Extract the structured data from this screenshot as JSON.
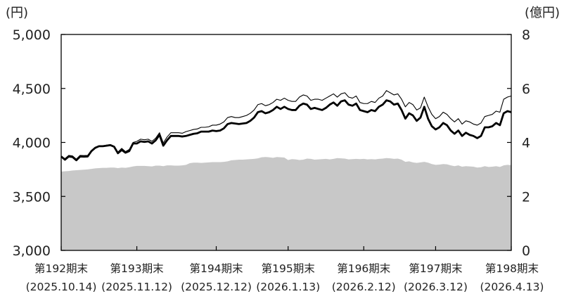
{
  "chart_data": {
    "type": "line",
    "left_axis": {
      "unit": "(円)",
      "ticks": [
        "5,000",
        "4,500",
        "4,000",
        "3,500",
        "3,000"
      ],
      "tick_values": [
        5000,
        4500,
        4000,
        3500,
        3000
      ],
      "ylim": [
        3000,
        5000
      ]
    },
    "right_axis": {
      "unit": "(億円)",
      "ticks": [
        "8",
        "6",
        "4",
        "2",
        "0"
      ],
      "tick_values": [
        8,
        6,
        4,
        2,
        0
      ],
      "ylim": [
        0,
        8
      ]
    },
    "x_labels": [
      {
        "term": "第192期末",
        "date": "(2025.10.14)",
        "index": 0
      },
      {
        "term": "第193期末",
        "date": "(2025.11.12)",
        "index": 20
      },
      {
        "term": "第194期末",
        "date": "(2025.12.12)",
        "index": 41
      },
      {
        "term": "第195期末",
        "date": "(2026.1.13)",
        "index": 60
      },
      {
        "term": "第196期末",
        "date": "(2026.2.12)",
        "index": 80
      },
      {
        "term": "第197期末",
        "date": "(2026.3.12)",
        "index": 99
      },
      {
        "term": "第198期末",
        "date": "(2026.4.13)",
        "index": 119
      }
    ],
    "n_points": 120,
    "series": [
      {
        "role": "thick-line",
        "axis": "left",
        "color": "#000000",
        "values": [
          3870,
          3840,
          3870,
          3865,
          3835,
          3870,
          3868,
          3870,
          3920,
          3950,
          3965,
          3965,
          3970,
          3975,
          3960,
          3900,
          3930,
          3905,
          3920,
          3990,
          3990,
          4010,
          4005,
          4010,
          3990,
          4020,
          4070,
          3970,
          4020,
          4060,
          4060,
          4060,
          4055,
          4060,
          4070,
          4080,
          4085,
          4100,
          4100,
          4100,
          4110,
          4105,
          4110,
          4130,
          4170,
          4180,
          4175,
          4170,
          4175,
          4180,
          4200,
          4230,
          4280,
          4290,
          4270,
          4280,
          4300,
          4330,
          4310,
          4330,
          4310,
          4300,
          4300,
          4340,
          4360,
          4350,
          4310,
          4320,
          4310,
          4300,
          4320,
          4350,
          4370,
          4340,
          4380,
          4390,
          4350,
          4340,
          4360,
          4300,
          4290,
          4280,
          4300,
          4290,
          4330,
          4350,
          4390,
          4380,
          4350,
          4360,
          4300,
          4220,
          4270,
          4250,
          4200,
          4230,
          4330,
          4220,
          4150,
          4120,
          4140,
          4180,
          4160,
          4110,
          4080,
          4110,
          4060,
          4090,
          4070,
          4060,
          4040,
          4060,
          4140,
          4140,
          4150,
          4180,
          4160,
          4270,
          4290,
          4280
        ]
      },
      {
        "role": "thin-line",
        "axis": "left",
        "color": "#000000",
        "values": [
          3870,
          3850,
          3880,
          3875,
          3845,
          3880,
          3878,
          3880,
          3925,
          3955,
          3965,
          3968,
          3975,
          3980,
          3965,
          3910,
          3945,
          3915,
          3935,
          4000,
          4010,
          4030,
          4025,
          4030,
          4010,
          4040,
          4090,
          3995,
          4050,
          4090,
          4090,
          4090,
          4085,
          4100,
          4110,
          4120,
          4125,
          4140,
          4140,
          4145,
          4160,
          4160,
          4170,
          4190,
          4230,
          4240,
          4230,
          4230,
          4240,
          4250,
          4270,
          4300,
          4350,
          4360,
          4340,
          4350,
          4370,
          4400,
          4390,
          4410,
          4390,
          4380,
          4380,
          4420,
          4440,
          4430,
          4390,
          4400,
          4400,
          4390,
          4410,
          4430,
          4450,
          4420,
          4450,
          4460,
          4420,
          4410,
          4430,
          4370,
          4360,
          4360,
          4380,
          4370,
          4410,
          4430,
          4480,
          4460,
          4440,
          4450,
          4400,
          4330,
          4370,
          4350,
          4300,
          4320,
          4420,
          4330,
          4260,
          4220,
          4240,
          4280,
          4260,
          4220,
          4190,
          4220,
          4170,
          4200,
          4190,
          4170,
          4160,
          4180,
          4240,
          4250,
          4260,
          4290,
          4280,
          4400,
          4420,
          4430
        ]
      },
      {
        "role": "area",
        "axis": "right",
        "color": "#c8c8c8",
        "values": [
          2.92,
          2.93,
          2.94,
          2.96,
          2.97,
          2.98,
          2.99,
          3.0,
          3.02,
          3.04,
          3.05,
          3.06,
          3.06,
          3.07,
          3.07,
          3.05,
          3.07,
          3.06,
          3.08,
          3.11,
          3.13,
          3.13,
          3.13,
          3.12,
          3.11,
          3.14,
          3.14,
          3.12,
          3.15,
          3.15,
          3.14,
          3.14,
          3.15,
          3.17,
          3.23,
          3.25,
          3.25,
          3.24,
          3.25,
          3.26,
          3.27,
          3.27,
          3.27,
          3.28,
          3.3,
          3.34,
          3.35,
          3.36,
          3.36,
          3.37,
          3.38,
          3.39,
          3.41,
          3.45,
          3.46,
          3.45,
          3.43,
          3.46,
          3.45,
          3.44,
          3.35,
          3.38,
          3.37,
          3.35,
          3.36,
          3.4,
          3.39,
          3.36,
          3.37,
          3.38,
          3.39,
          3.37,
          3.39,
          3.42,
          3.41,
          3.4,
          3.37,
          3.38,
          3.39,
          3.38,
          3.39,
          3.37,
          3.38,
          3.37,
          3.39,
          3.4,
          3.42,
          3.41,
          3.39,
          3.4,
          3.36,
          3.28,
          3.3,
          3.26,
          3.24,
          3.26,
          3.28,
          3.25,
          3.2,
          3.17,
          3.18,
          3.2,
          3.19,
          3.15,
          3.12,
          3.15,
          3.1,
          3.12,
          3.11,
          3.1,
          3.07,
          3.08,
          3.12,
          3.09,
          3.1,
          3.12,
          3.09,
          3.15,
          3.17,
          3.16
        ]
      }
    ]
  }
}
